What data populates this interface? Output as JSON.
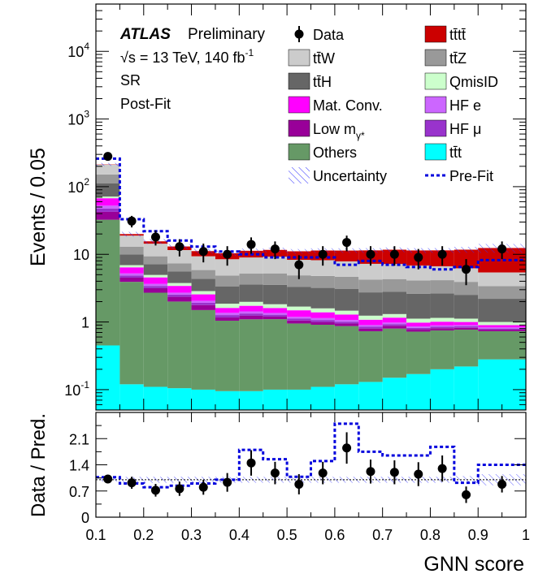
{
  "chart_data": [
    {
      "type": "bar",
      "stacked": true,
      "log_y": true,
      "ylabel": "Events / 0.05",
      "ylim": [
        0.05,
        50000
      ],
      "xlim": [
        0.1,
        1.0
      ],
      "annotations": {
        "experiment": "ATLAS",
        "status": "Preliminary",
        "energy_prefix": "√s = 13 TeV, 140 fb",
        "energy_sup": "-1",
        "region": "SR",
        "fit_state": "Post-Fit"
      },
      "bin_edges": [
        0.1,
        0.15,
        0.2,
        0.25,
        0.3,
        0.35,
        0.4,
        0.45,
        0.5,
        0.55,
        0.6,
        0.65,
        0.7,
        0.75,
        0.8,
        0.85,
        0.9,
        1.0
      ],
      "stack_order": [
        "ttt",
        "Others",
        "Low m_gamma*",
        "HF mu",
        "HF e",
        "Mat. Conv.",
        "QmisID",
        "ttH",
        "ttZ",
        "ttW",
        "tttt"
      ],
      "series": [
        {
          "name": "tt̄t",
          "key": "ttt",
          "color": "#00ffff",
          "values": [
            0.45,
            0.12,
            0.11,
            0.105,
            0.1,
            0.095,
            0.095,
            0.1,
            0.1,
            0.11,
            0.12,
            0.13,
            0.15,
            0.17,
            0.2,
            0.22,
            0.28
          ]
        },
        {
          "name": "Others",
          "key": "Others",
          "color": "#669966",
          "values": [
            32,
            3.8,
            2.6,
            1.9,
            1.4,
            0.95,
            1.0,
            1.0,
            0.85,
            0.8,
            0.75,
            0.6,
            0.65,
            0.55,
            0.55,
            0.55,
            0.45
          ]
        },
        {
          "name": "Low m",
          "key": "Low m_gamma*",
          "color": "#990099",
          "values": [
            10,
            0.6,
            0.45,
            0.35,
            0.28,
            0.12,
            0.14,
            0.1,
            0.1,
            0.09,
            0.08,
            0.07,
            0.08,
            0.06,
            0.06,
            0.05,
            0.04
          ]
        },
        {
          "name": "HF μ",
          "key": "HF mu",
          "color": "#9933cc",
          "values": [
            5,
            0.35,
            0.25,
            0.18,
            0.14,
            0.1,
            0.1,
            0.08,
            0.07,
            0.07,
            0.06,
            0.05,
            0.05,
            0.04,
            0.04,
            0.04,
            0.03
          ]
        },
        {
          "name": "HF e",
          "key": "HF e",
          "color": "#cc66ff",
          "values": [
            5,
            0.35,
            0.25,
            0.18,
            0.14,
            0.1,
            0.1,
            0.08,
            0.07,
            0.07,
            0.06,
            0.05,
            0.05,
            0.04,
            0.04,
            0.04,
            0.03
          ]
        },
        {
          "name": "Mat. Conv.",
          "key": "Mat. Conv.",
          "color": "#ff00ff",
          "values": [
            15,
            1.2,
            0.9,
            0.7,
            0.5,
            0.25,
            0.3,
            0.25,
            0.3,
            0.25,
            0.22,
            0.18,
            0.18,
            0.12,
            0.12,
            0.1,
            0.07
          ]
        },
        {
          "name": "QmisID",
          "key": "QmisID",
          "color": "#ccffcc",
          "values": [
            4,
            0.5,
            0.4,
            0.35,
            0.3,
            0.25,
            0.25,
            0.22,
            0.2,
            0.2,
            0.18,
            0.16,
            0.15,
            0.14,
            0.14,
            0.12,
            0.1
          ]
        },
        {
          "name": "tt̄H",
          "key": "ttH",
          "color": "#666666",
          "values": [
            40,
            3.0,
            2.2,
            1.8,
            1.5,
            1.5,
            1.6,
            1.7,
            1.6,
            1.6,
            1.6,
            1.5,
            1.5,
            1.5,
            1.5,
            1.4,
            1.2
          ]
        },
        {
          "name": "tt̄Z",
          "key": "ttZ",
          "color": "#999999",
          "values": [
            40,
            3.0,
            2.2,
            1.8,
            1.5,
            1.5,
            1.6,
            1.7,
            1.6,
            1.6,
            1.6,
            1.5,
            1.5,
            1.5,
            1.5,
            1.4,
            1.2
          ]
        },
        {
          "name": "tt̄W",
          "key": "ttW",
          "color": "#cccccc",
          "values": [
            60,
            6.0,
            5.0,
            4.2,
            3.5,
            3.6,
            3.8,
            4.0,
            3.4,
            3.4,
            3.2,
            3.0,
            2.9,
            2.7,
            2.5,
            2.3,
            2.0
          ]
        },
        {
          "name": "tt̄tt̄",
          "key": "tttt",
          "color": "#cc0000",
          "values": [
            2,
            1.0,
            1.2,
            1.5,
            1.8,
            1.9,
            2.3,
            2.4,
            2.8,
            3.2,
            3.5,
            4.2,
            4.5,
            4.6,
            4.8,
            5.5,
            7.0
          ]
        }
      ],
      "data_points": {
        "name": "Data",
        "x": [
          0.125,
          0.175,
          0.225,
          0.275,
          0.325,
          0.375,
          0.425,
          0.475,
          0.525,
          0.575,
          0.625,
          0.675,
          0.725,
          0.775,
          0.825,
          0.875,
          0.95
        ],
        "y": [
          280,
          31,
          18,
          13,
          11,
          10,
          14,
          12,
          7,
          10,
          15,
          10,
          10,
          9,
          10,
          6,
          12
        ],
        "err": [
          17,
          6,
          4.5,
          3.7,
          3.4,
          3.2,
          3.8,
          3.5,
          2.7,
          3.2,
          3.9,
          3.2,
          3.2,
          3.0,
          3.2,
          2.5,
          3.5
        ]
      },
      "prefit": {
        "name": "Pre-Fit",
        "values": [
          260,
          33,
          22,
          16,
          13,
          11,
          10,
          9,
          9,
          9,
          7,
          8,
          7,
          6.5,
          6,
          6.5,
          8.2
        ]
      },
      "legend": {
        "left": [
          "Data",
          "ttW",
          "ttH",
          "Mat. Conv.",
          "Low m_gamma*",
          "Others",
          "Uncertainty"
        ],
        "right": [
          "tttt",
          "ttZ",
          "QmisID",
          "HF e",
          "HF mu",
          "ttt",
          "Pre-Fit"
        ],
        "labels": {
          "Data": "Data",
          "Uncertainty": "Uncertainty",
          "Pre-Fit": "Pre-Fit",
          "QmisID": "QmisID",
          "Mat. Conv.": "Mat. Conv.",
          "Others": "Others",
          "HF e": "HF e",
          "HF mu": "HF μ",
          "Low m_gamma*": "Low m",
          "Low m_sub": "γ*",
          "ttW": "tt̄W",
          "ttZ": "tt̄Z",
          "ttH": "tt̄H",
          "tttt": "tt̄tt̄",
          "ttt": "tt̄t"
        },
        "placement": "top"
      }
    },
    {
      "type": "scatter",
      "ylabel": "Data / Pred.",
      "xlabel": "GNN score",
      "ylim": [
        0,
        2.8
      ],
      "yticks": [
        0,
        0.7,
        1.4,
        2.1
      ],
      "ytick_labels": [
        "0",
        "0.7",
        "1.4",
        "2.1"
      ],
      "xticks": [
        0.1,
        0.2,
        0.3,
        0.4,
        0.5,
        0.6,
        0.7,
        0.8,
        0.9,
        1.0
      ],
      "xtick_labels": [
        "0.1",
        "0.2",
        "0.3",
        "0.4",
        "0.5",
        "0.6",
        "0.7",
        "0.8",
        "0.9",
        "1"
      ],
      "x": [
        0.125,
        0.175,
        0.225,
        0.275,
        0.325,
        0.375,
        0.425,
        0.475,
        0.525,
        0.575,
        0.625,
        0.675,
        0.725,
        0.775,
        0.825,
        0.875,
        0.95
      ],
      "y": [
        1.02,
        0.92,
        0.72,
        0.76,
        0.8,
        0.93,
        1.45,
        1.18,
        0.88,
        1.18,
        1.85,
        1.22,
        1.2,
        1.15,
        1.3,
        0.6,
        0.88
      ],
      "err": [
        0.07,
        0.16,
        0.17,
        0.19,
        0.2,
        0.25,
        0.34,
        0.3,
        0.27,
        0.3,
        0.42,
        0.32,
        0.32,
        0.32,
        0.35,
        0.22,
        0.22
      ],
      "prefit_ratio": [
        1.07,
        0.9,
        0.8,
        0.84,
        0.9,
        1.0,
        1.8,
        1.55,
        1.08,
        1.5,
        2.5,
        1.75,
        1.65,
        1.65,
        1.88,
        0.92,
        1.4
      ],
      "unc_band": [
        0.05,
        0.08,
        0.08,
        0.08,
        0.08,
        0.08,
        0.08,
        0.08,
        0.08,
        0.08,
        0.08,
        0.08,
        0.08,
        0.08,
        0.08,
        0.1,
        0.15
      ]
    }
  ],
  "upper_yticks": [
    {
      "base": "10",
      "exp": "-1",
      "value": 0.1
    },
    {
      "base": "1",
      "exp": "",
      "value": 1
    },
    {
      "base": "10",
      "exp": "",
      "value": 10
    },
    {
      "base": "10",
      "exp": "2",
      "value": 100
    },
    {
      "base": "10",
      "exp": "3",
      "value": 1000
    },
    {
      "base": "10",
      "exp": "4",
      "value": 10000
    }
  ]
}
